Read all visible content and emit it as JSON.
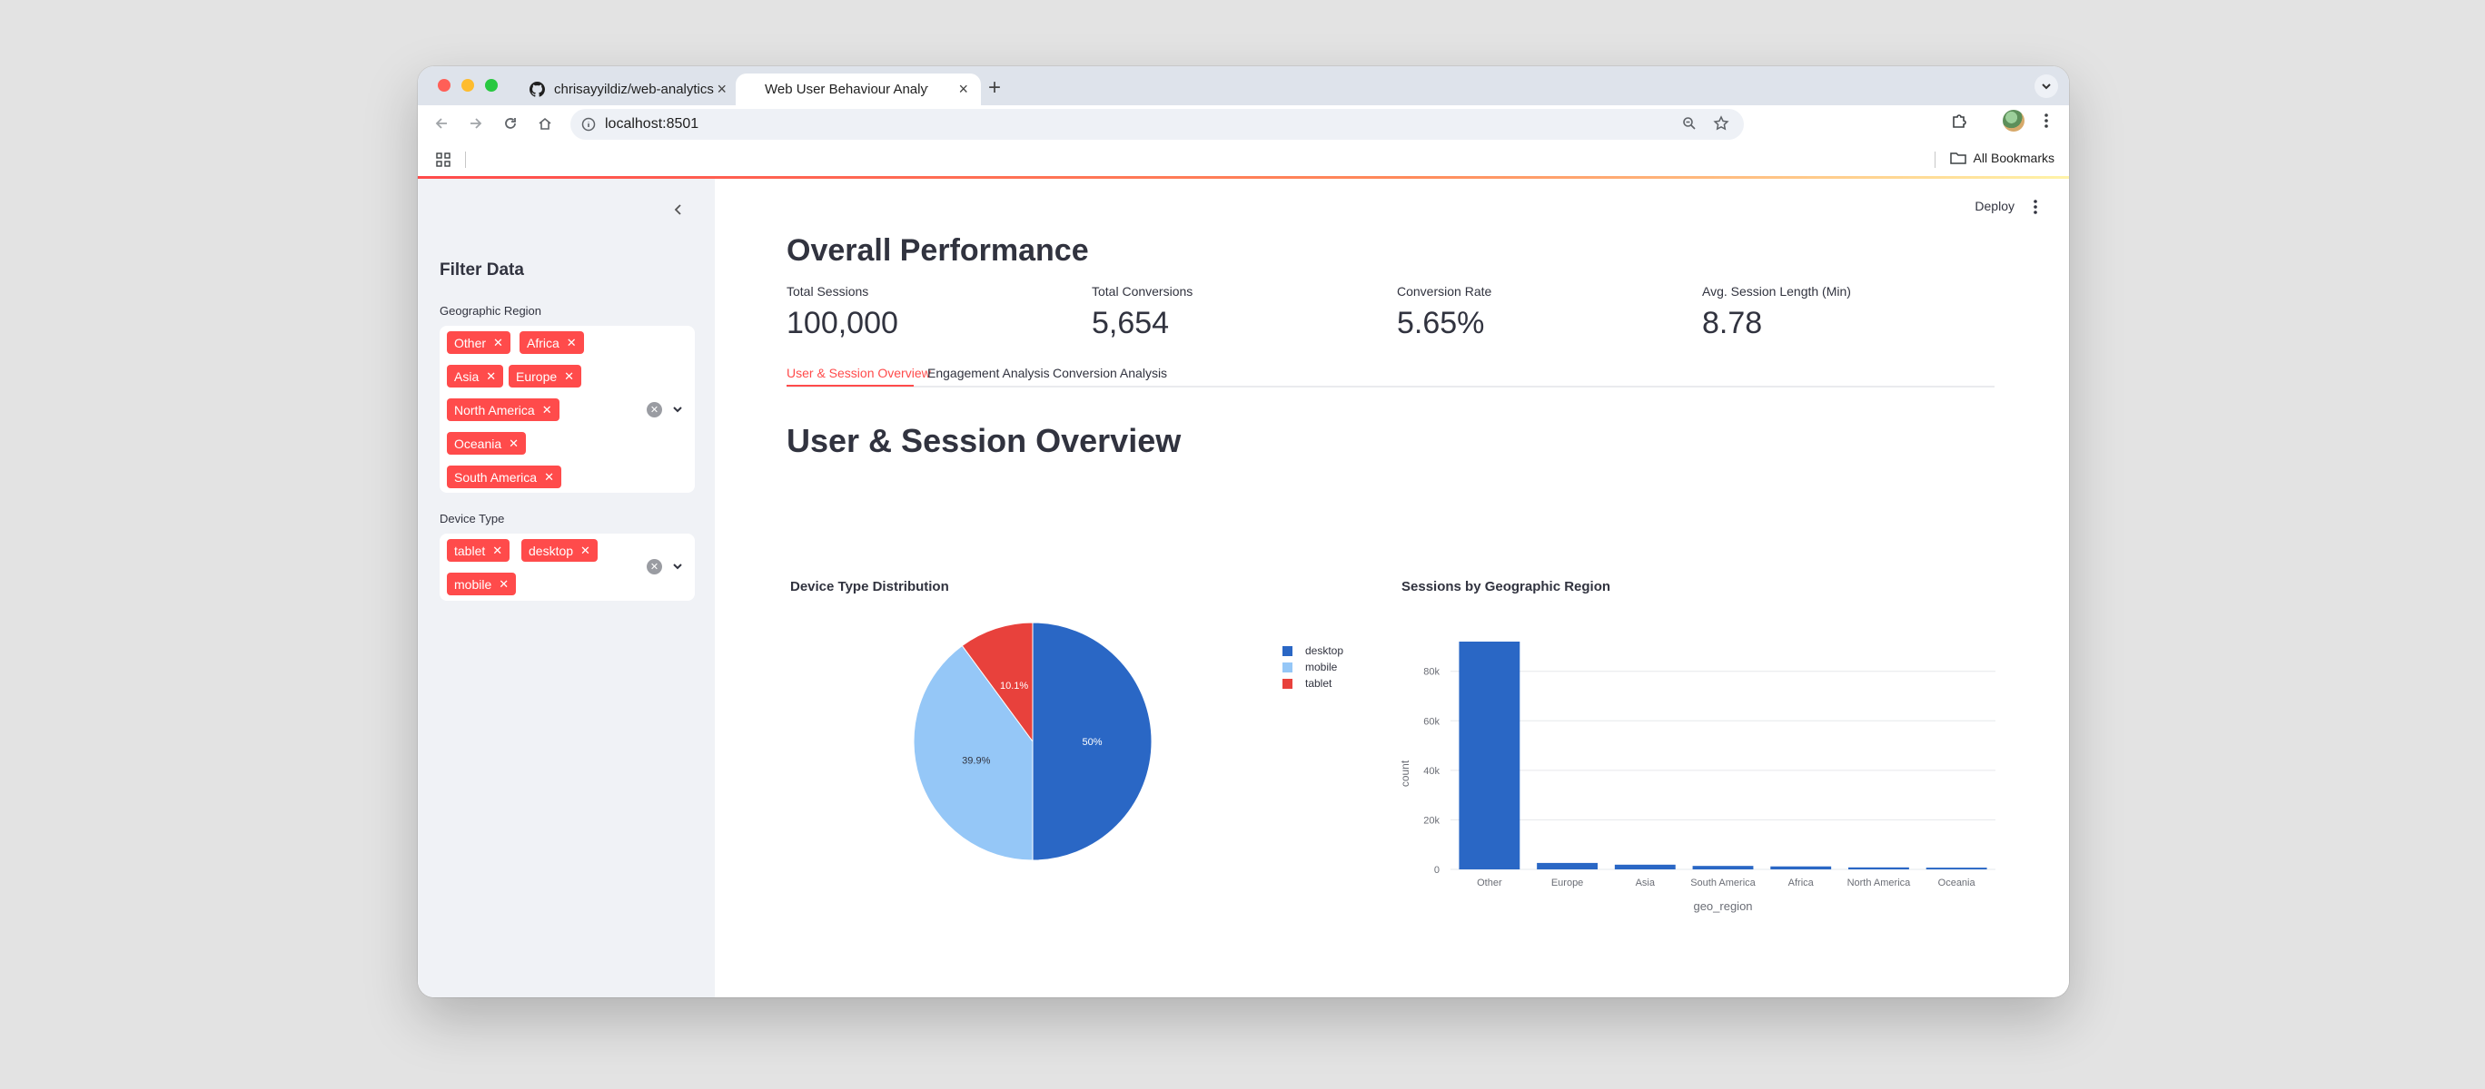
{
  "browser": {
    "tabs": [
      {
        "title": "chrisayyildiz/web-analytics",
        "icon": "github-icon"
      },
      {
        "title": "Web User Behaviour Analytic",
        "icon": "streamlit-icon"
      }
    ],
    "url": "localhost:8501",
    "bookmarks_label": "All Bookmarks"
  },
  "sidebar": {
    "title": "Filter Data",
    "region_filter": {
      "label": "Geographic Region",
      "selected": [
        "Other",
        "Africa",
        "Asia",
        "Europe",
        "North America",
        "Oceania",
        "South America"
      ]
    },
    "device_filter": {
      "label": "Device Type",
      "selected": [
        "tablet",
        "desktop",
        "mobile"
      ]
    }
  },
  "header": {
    "deploy_label": "Deploy"
  },
  "main": {
    "title": "Overall Performance",
    "metrics": [
      {
        "label": "Total Sessions",
        "value": "100,000"
      },
      {
        "label": "Total Conversions",
        "value": "5,654"
      },
      {
        "label": "Conversion Rate",
        "value": "5.65%"
      },
      {
        "label": "Avg. Session Length (Min)",
        "value": "8.78"
      }
    ],
    "tabs": [
      "User & Session Overview",
      "Engagement Analysis",
      "Conversion Analysis"
    ],
    "active_tab": "User & Session Overview",
    "section_title": "User & Session Overview"
  },
  "colors": {
    "accent": "#ff4b4b",
    "desktop": "#2a67c5",
    "mobile": "#95c7f7",
    "tablet": "#e8413c"
  },
  "chart_data": [
    {
      "type": "pie",
      "title": "Device Type Distribution",
      "categories": [
        "desktop",
        "mobile",
        "tablet"
      ],
      "values": [
        50,
        39.9,
        10.1
      ],
      "labels": [
        "50%",
        "39.9%",
        "10.1%"
      ],
      "colors": [
        "#2a67c5",
        "#95c7f7",
        "#e8413c"
      ],
      "legend": "right"
    },
    {
      "type": "bar",
      "title": "Sessions by Geographic Region",
      "categories": [
        "Other",
        "Europe",
        "Asia",
        "South America",
        "Africa",
        "North America",
        "Oceania"
      ],
      "values": [
        92000,
        2600,
        1900,
        1400,
        1200,
        800,
        700
      ],
      "xlabel": "geo_region",
      "ylabel": "count",
      "ylim": [
        0,
        92000
      ],
      "yticks": [
        0,
        20000,
        40000,
        60000,
        80000
      ],
      "ytick_labels": [
        "0",
        "20k",
        "40k",
        "60k",
        "80k"
      ],
      "color": "#2a67c5",
      "grid": true
    }
  ]
}
